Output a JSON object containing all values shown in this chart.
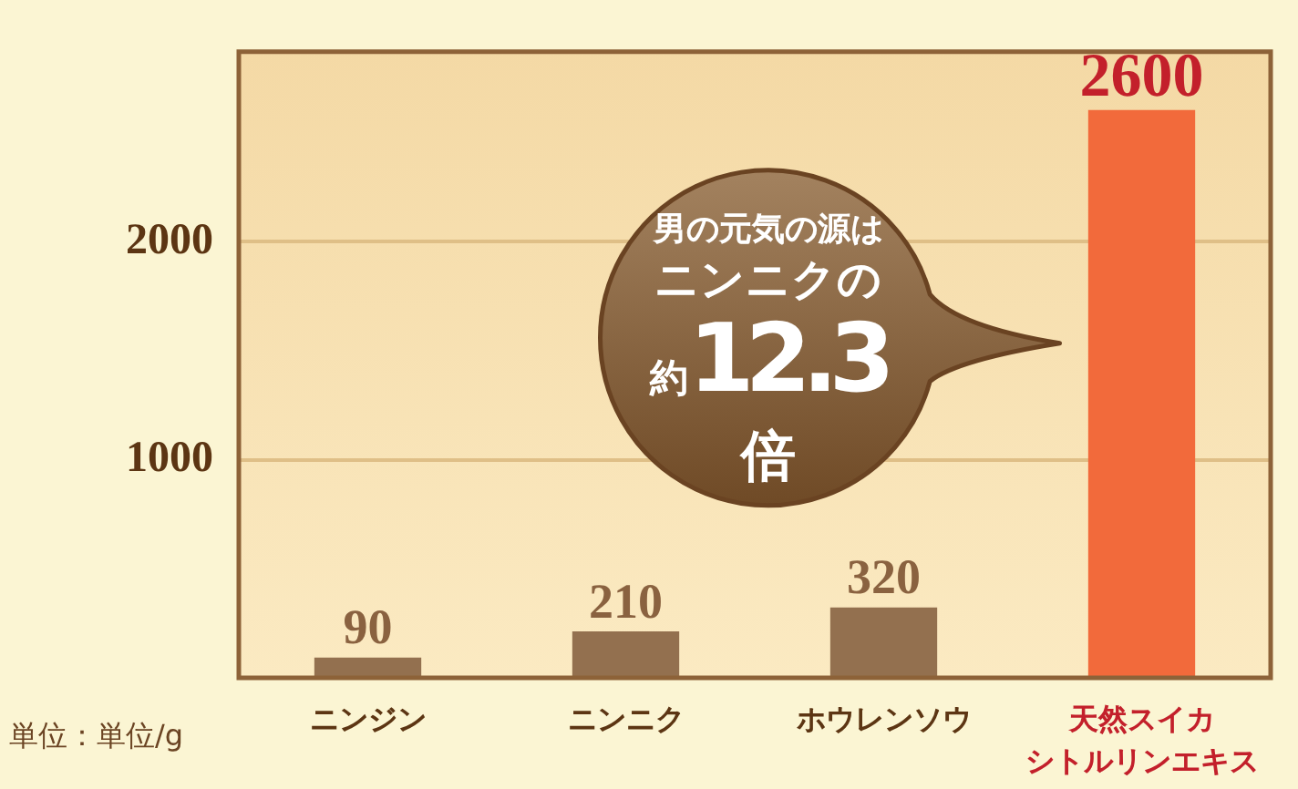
{
  "chart_data": {
    "type": "bar",
    "categories": [
      "ニンジン",
      "ニンニク",
      "ホウレンソウ",
      "天然スイカシトルリンエキス"
    ],
    "values": [
      90,
      210,
      320,
      2600
    ],
    "colors": [
      "#93704f",
      "#93704f",
      "#93704f",
      "#f26a3b"
    ],
    "ylim": [
      0,
      2870
    ],
    "yticks": [
      1000,
      2000
    ],
    "grid": "y",
    "data_labels": true,
    "ylabel": "単位：単位/g",
    "annotations": [
      "男の元気の源はニンニクの約12.3倍"
    ]
  }
}
